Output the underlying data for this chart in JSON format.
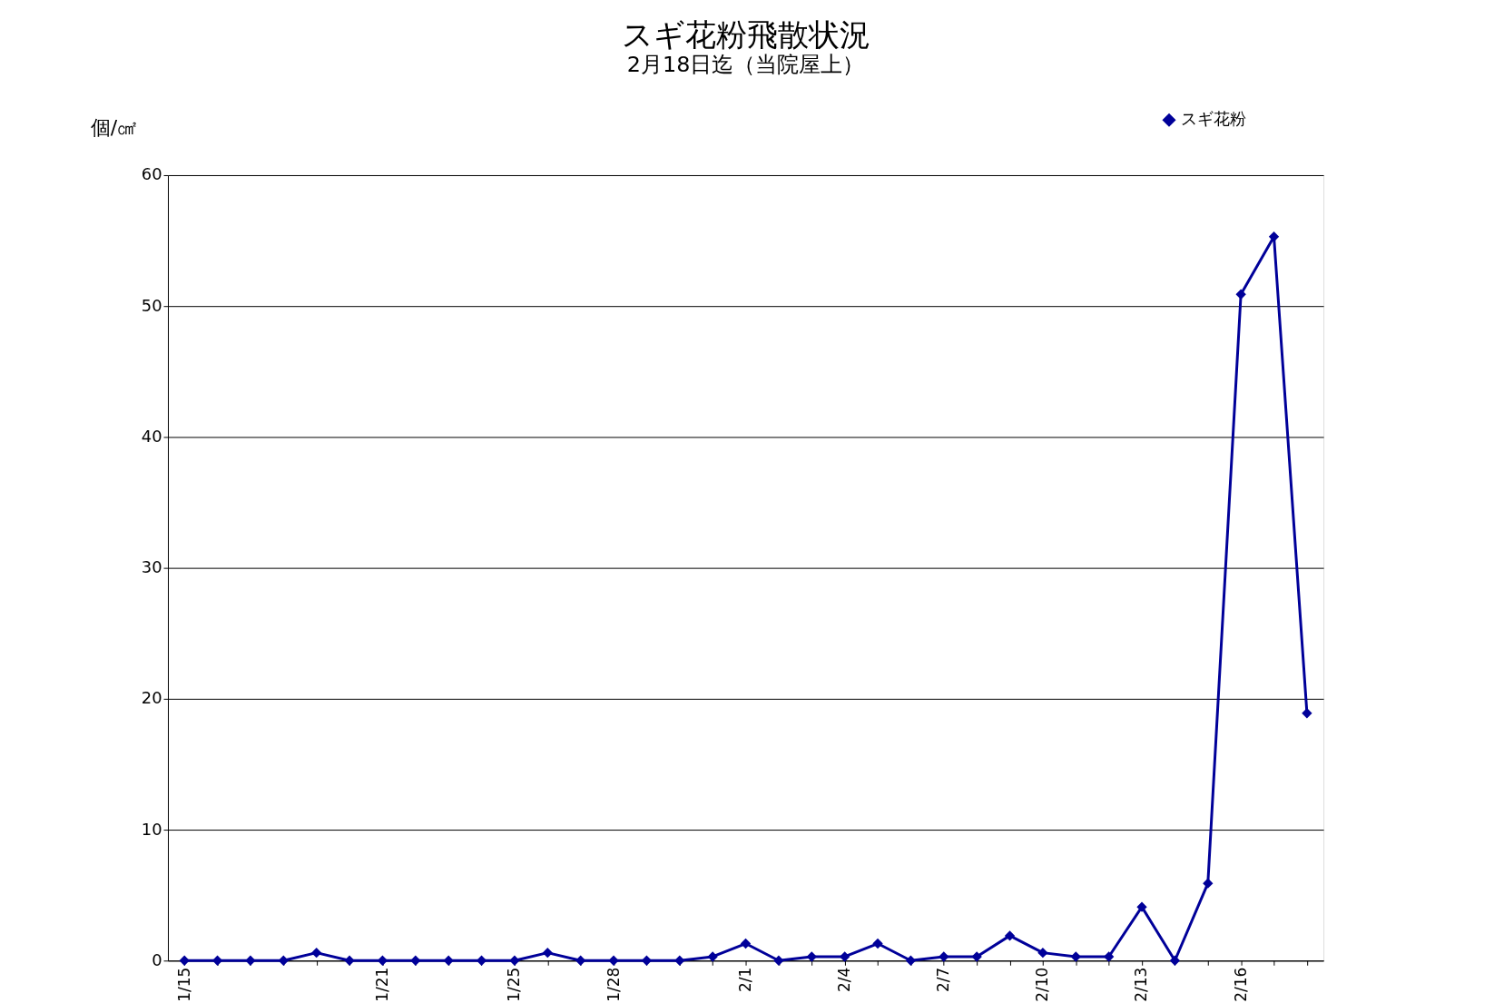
{
  "chart_data": {
    "type": "line",
    "title": "スギ花粉飛散状況",
    "subtitle": "2月18日迄（当院屋上）",
    "ylabel": "個/㎠",
    "categories": [
      "1/15",
      null,
      null,
      null,
      null,
      null,
      "1/21",
      null,
      null,
      null,
      "1/25",
      null,
      null,
      "1/28",
      null,
      null,
      null,
      "2/1",
      null,
      null,
      "2/4",
      null,
      null,
      "2/7",
      null,
      null,
      "2/10",
      null,
      null,
      "2/13",
      null,
      null,
      "2/16",
      null,
      null
    ],
    "series": [
      {
        "name": "スギ花粉",
        "color": "#000099",
        "values": [
          0,
          0,
          0,
          0,
          0.6,
          0,
          0,
          0,
          0,
          0,
          0,
          0.6,
          0,
          0,
          0,
          0,
          0.3,
          1.3,
          0,
          0.3,
          0.3,
          1.3,
          0,
          0.3,
          0.3,
          1.9,
          0.6,
          0.3,
          0.3,
          4.1,
          0,
          5.9,
          50.9,
          55.3,
          18.9
        ]
      }
    ],
    "ylim": [
      0,
      60
    ],
    "yticks": [
      0,
      10,
      20,
      30,
      40,
      50,
      60
    ],
    "grid": "y",
    "legend": "top right",
    "marker": "diamond",
    "line_style": "solid"
  }
}
